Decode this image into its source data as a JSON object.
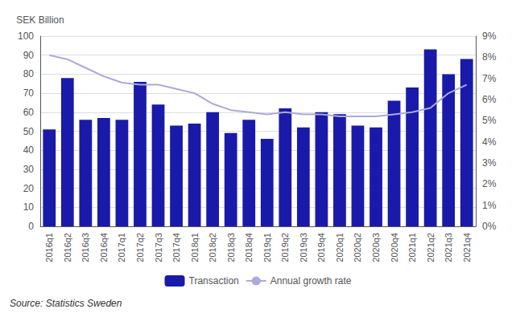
{
  "chart_data": {
    "type": "bar",
    "ylabel": "SEK Billion",
    "annotations": [
      "Source: Statistics Sweden"
    ],
    "categories": [
      "2016q1",
      "2016q2",
      "2016q3",
      "2016q4",
      "2017q1",
      "2017q2",
      "2017q3",
      "2017q4",
      "2018q1",
      "2018q2",
      "2018q3",
      "2018q4",
      "2019q1",
      "2019q2",
      "2019q3",
      "2019q4",
      "2020q1",
      "2020q2",
      "2020q3",
      "2020q4",
      "2021q1",
      "2021q2",
      "2021q3",
      "2021q4"
    ],
    "series": [
      {
        "name": "Transaction",
        "type": "bar",
        "color": "#1a1aaa",
        "values": [
          51,
          78,
          56,
          57,
          56,
          76,
          64,
          53,
          54,
          60,
          49,
          56,
          46,
          62,
          52,
          60,
          59,
          53,
          52,
          66,
          73,
          93,
          80,
          88
        ]
      },
      {
        "name": "Annual growth rate",
        "type": "line",
        "color": "#aaaadd",
        "axis": "y2",
        "values": [
          8.1,
          7.9,
          7.5,
          7.1,
          6.8,
          6.7,
          6.7,
          6.5,
          6.3,
          5.8,
          5.5,
          5.4,
          5.3,
          5.4,
          5.3,
          5.3,
          5.2,
          5.2,
          5.2,
          5.3,
          5.4,
          5.6,
          6.3,
          6.7
        ]
      }
    ],
    "ylim": [
      0,
      100
    ],
    "yticks": [
      0,
      10,
      20,
      30,
      40,
      50,
      60,
      70,
      80,
      90,
      100
    ],
    "y2lim": [
      0,
      9
    ],
    "y2ticks": [
      {
        "value": 0,
        "label": "0%"
      },
      {
        "value": 1,
        "label": "1%"
      },
      {
        "value": 2,
        "label": "2%"
      },
      {
        "value": 3,
        "label": "3%"
      },
      {
        "value": 4,
        "label": "4%"
      },
      {
        "value": 5,
        "label": "5%"
      },
      {
        "value": 6,
        "label": "6%"
      },
      {
        "value": 7,
        "label": "7%"
      },
      {
        "value": 8,
        "label": "8%"
      },
      {
        "value": 9,
        "label": "9%"
      }
    ],
    "grid": true,
    "legend": "bottom"
  }
}
